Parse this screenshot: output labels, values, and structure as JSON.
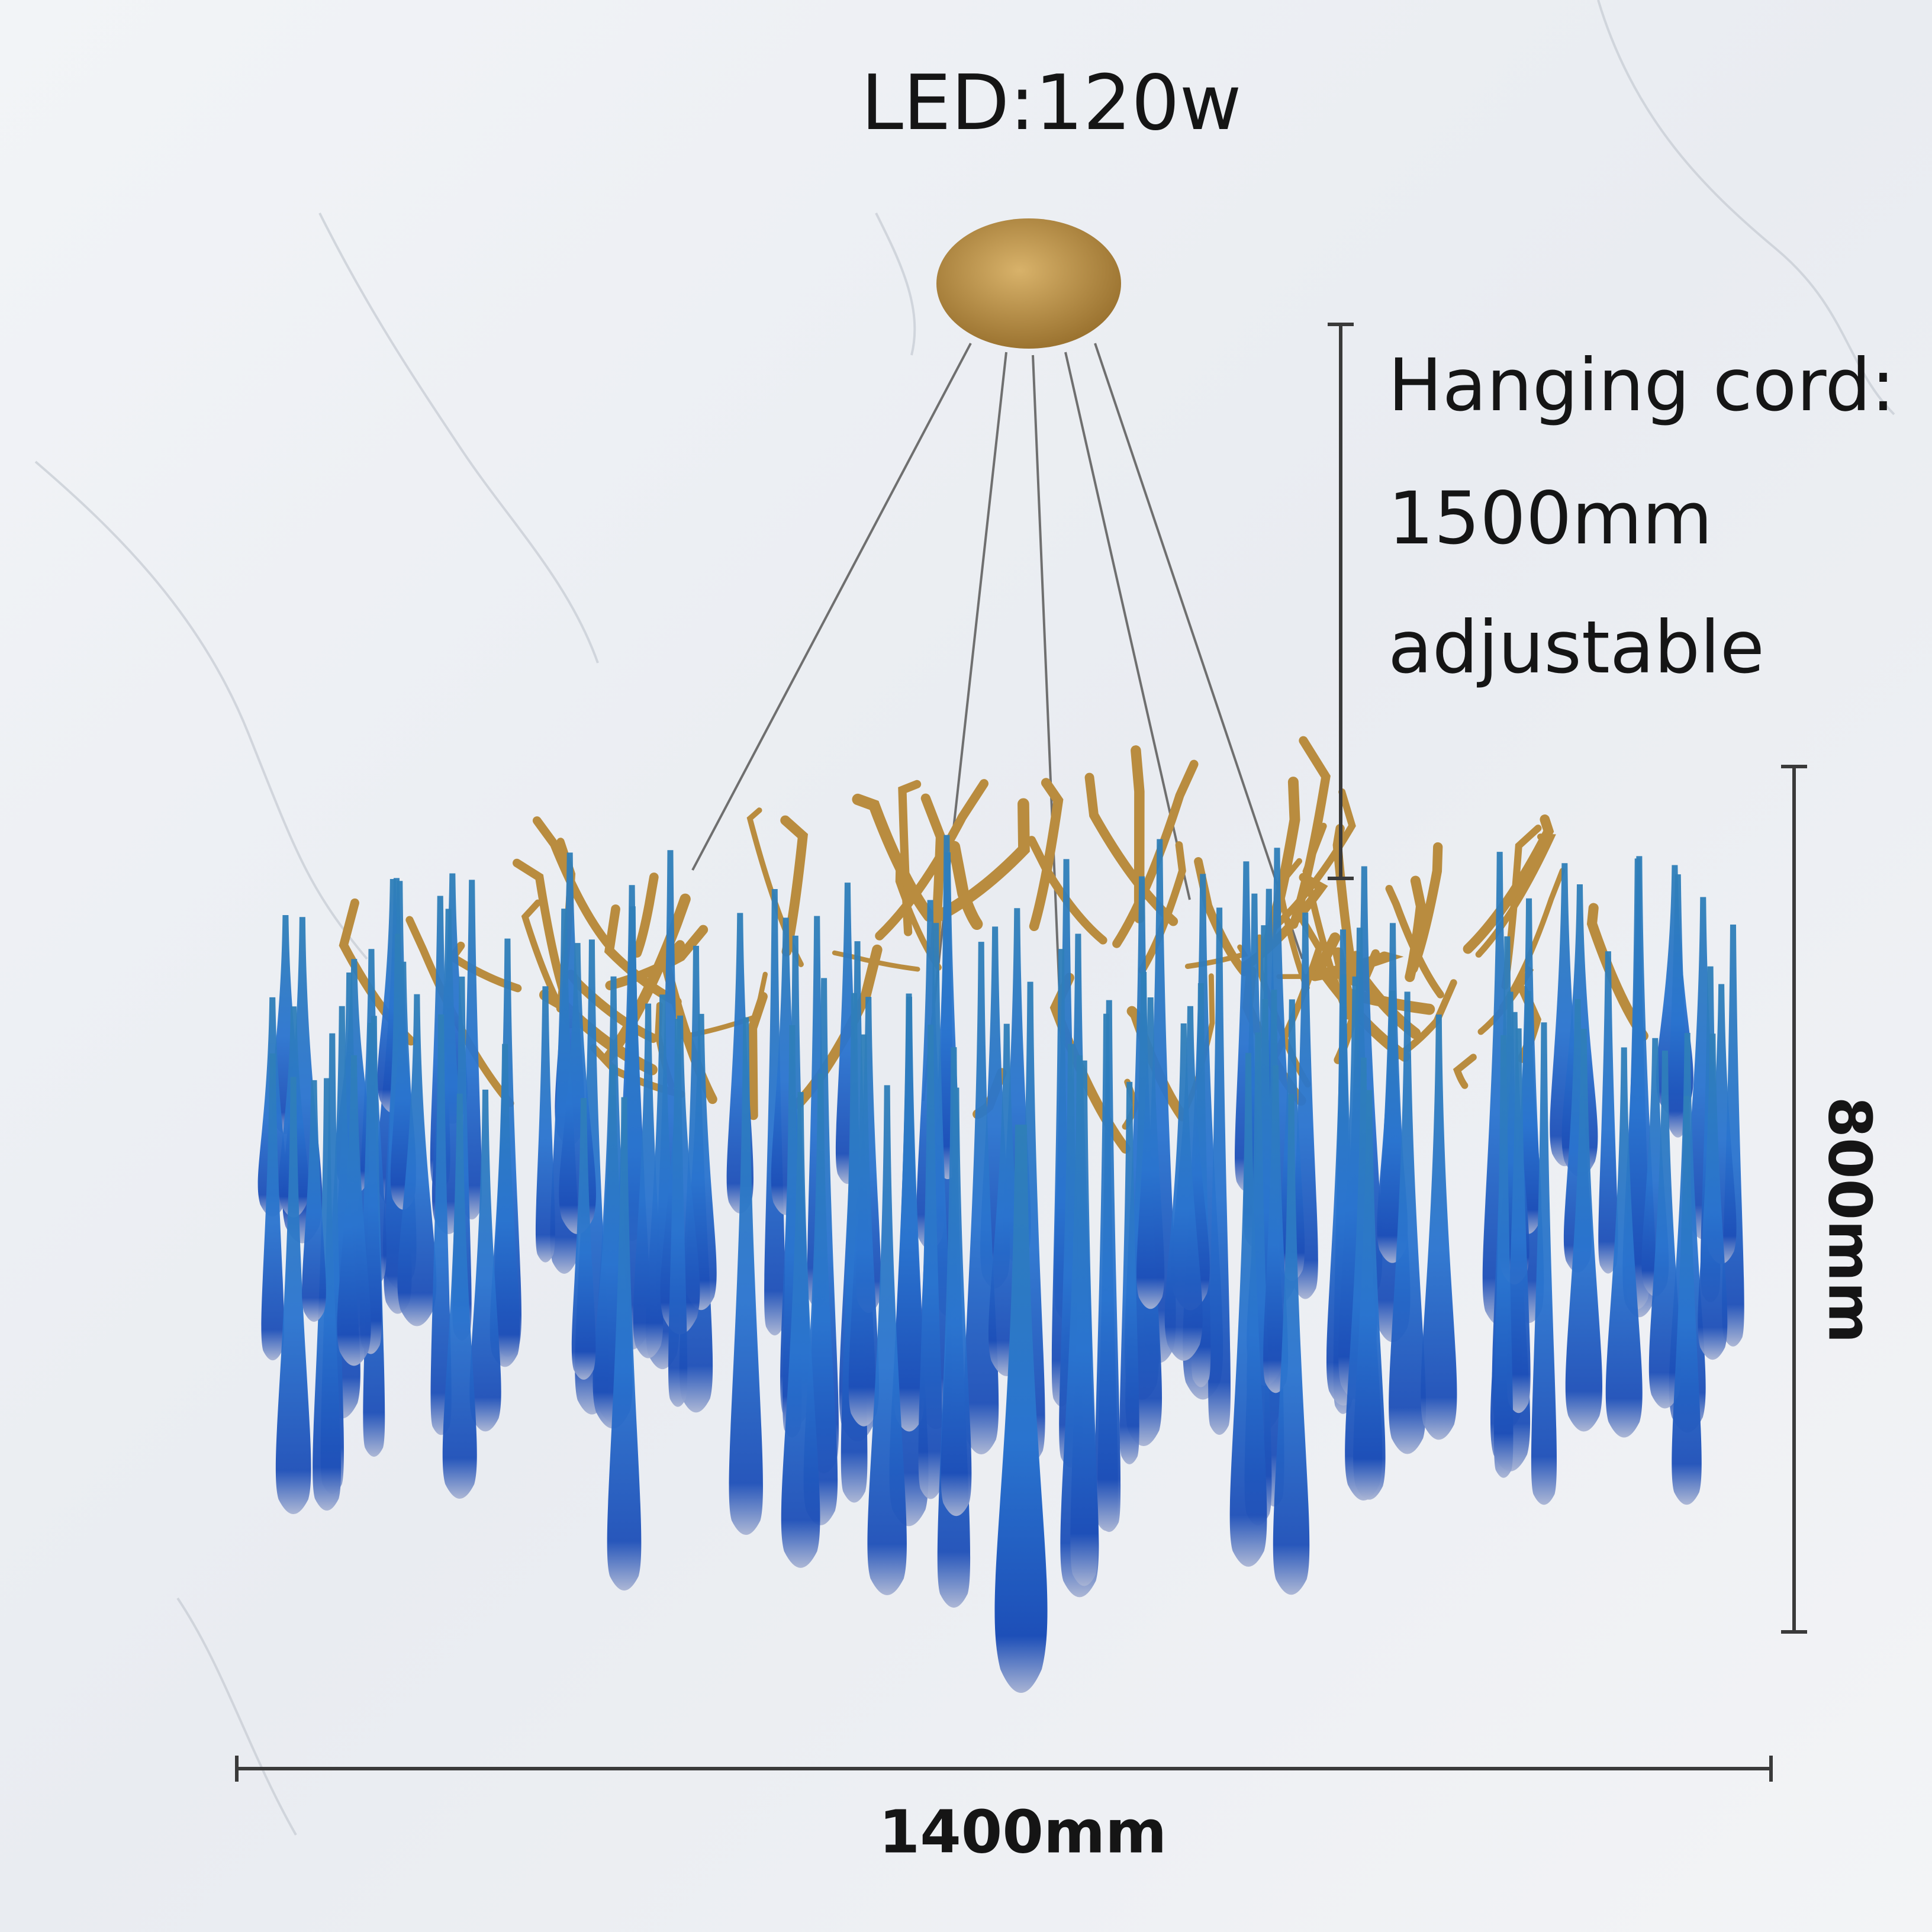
{
  "power_label": "LED:120w",
  "cord": {
    "line1": "Hanging cord:",
    "line2": "1500mm",
    "line3": "adjustable"
  },
  "height_label": "800mm",
  "width_label": "1400mm"
}
